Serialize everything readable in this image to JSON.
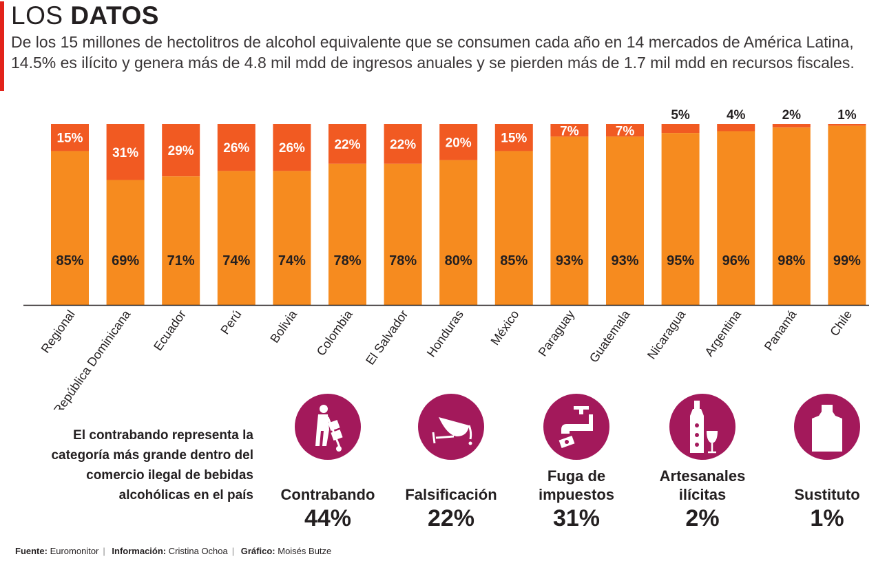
{
  "header": {
    "title_light": "LOS",
    "title_bold": "DATOS",
    "subtitle": "De los 15 millones de hectolitros de alcohol equivalente que se consumen cada año en 14 mercados de América Latina, 14.5% es ilícito y genera más de 4.8 mil mdd de ingresos anuales y se pierden más de 1.7 mil mdd en recursos fiscales."
  },
  "colors": {
    "legal": "#f68b1f",
    "illicit": "#f15a22",
    "category_circle": "#a3195b",
    "accent_bar": "#e2231a"
  },
  "chart_data": {
    "type": "bar",
    "stacked": true,
    "categories": [
      "Regional",
      "República Dominicana",
      "Ecuador",
      "Perú",
      "Bolivia",
      "Colombia",
      "El Salvador",
      "Honduras",
      "México",
      "Paraguay",
      "Guatemala",
      "Nicaragua",
      "Argentina",
      "Panamá",
      "Chile"
    ],
    "series": [
      {
        "values": [
          85,
          69,
          71,
          74,
          74,
          78,
          78,
          80,
          85,
          93,
          93,
          95,
          96,
          98,
          99
        ],
        "labels": [
          "85%",
          "69%",
          "71%",
          "74%",
          "74%",
          "78%",
          "78%",
          "80%",
          "85%",
          "93%",
          "93%",
          "95%",
          "96%",
          "98%",
          "99%"
        ]
      },
      {
        "values": [
          15,
          31,
          29,
          26,
          26,
          22,
          22,
          20,
          15,
          7,
          7,
          5,
          4,
          2,
          1
        ],
        "labels": [
          "15%",
          "31%",
          "29%",
          "26%",
          "26%",
          "22%",
          "22%",
          "20%",
          "15%",
          "7%",
          "7%",
          "5%",
          "4%",
          "2%",
          "1%"
        ]
      }
    ],
    "ylim": [
      0,
      100
    ],
    "grid": false,
    "legend": "none"
  },
  "note": "El contrabando representa la categoría más grande dentro del comercio ilegal de bebidas alcohólicas en el país",
  "categories": [
    {
      "label": "Contrabando",
      "value": "44%",
      "icon": "smuggler-hand-truck-icon"
    },
    {
      "label": "Falsificación",
      "value": "22%",
      "icon": "spilled-wine-glass-icon"
    },
    {
      "label": "Fuga de impuestos",
      "value": "31%",
      "icon": "faucet-money-leak-icon"
    },
    {
      "label": "Artesanales ilícitas",
      "value": "2%",
      "icon": "artisanal-bottle-glass-icon"
    },
    {
      "label": "Sustituto",
      "value": "1%",
      "icon": "bottle-icon"
    }
  ],
  "footer": {
    "source_label": "Fuente:",
    "source": "Euromonitor",
    "info_label": "Información:",
    "info": "Cristina Ochoa",
    "graphic_label": "Gráfico:",
    "graphic": "Moisés Butze"
  }
}
